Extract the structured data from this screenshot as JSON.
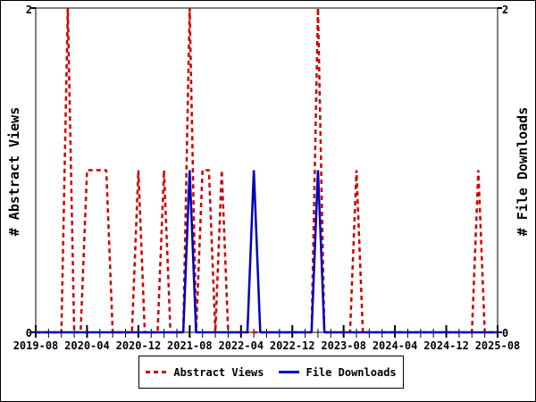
{
  "chart": {
    "left_axis_title": "# Abstract Views",
    "right_axis_title": "# File Downloads",
    "background_color": "#ffffff",
    "axis_color": "#000000",
    "text_color": "#000000"
  },
  "chart_data": {
    "type": "line",
    "title": "",
    "x_start_month": "2019-08",
    "x_end_month": "2025-08",
    "months_span": 72,
    "x_tick_labels": [
      "2019-08",
      "2020-04",
      "2020-12",
      "2021-08",
      "2022-04",
      "2022-12",
      "2023-08",
      "2024-04",
      "2024-12",
      "2025-08"
    ],
    "x_major_tick_every_months": 8,
    "x_minor_tick_every_months": 2,
    "ylim": [
      0,
      2
    ],
    "y_tick_labels": [
      "0",
      "2"
    ],
    "left_ylabel": "# Abstract Views",
    "right_ylabel": "# File Downloads",
    "grid": false,
    "legend_position": "bottom-center",
    "series": [
      {
        "name": "Abstract Views",
        "color": "#cc0000",
        "line_style": "dashed",
        "axis": "left",
        "values": [
          0,
          0,
          0,
          0,
          0,
          2,
          0,
          0,
          1,
          1,
          1,
          1,
          0,
          0,
          0,
          0,
          1,
          0,
          0,
          0,
          1,
          0,
          0,
          0,
          2,
          0,
          1,
          1,
          0,
          1,
          0,
          0,
          0,
          0,
          0,
          0,
          0,
          0,
          0,
          0,
          0,
          0,
          0,
          0,
          2,
          0,
          0,
          0,
          0,
          0,
          1,
          0,
          0,
          0,
          0,
          0,
          0,
          0,
          0,
          0,
          0,
          0,
          0,
          0,
          0,
          0,
          0,
          0,
          0,
          1,
          0,
          0,
          0
        ]
      },
      {
        "name": "File Downloads",
        "color": "#0000bb",
        "line_style": "solid",
        "axis": "right",
        "values": [
          0,
          0,
          0,
          0,
          0,
          0,
          0,
          0,
          0,
          0,
          0,
          0,
          0,
          0,
          0,
          0,
          0,
          0,
          0,
          0,
          0,
          0,
          0,
          0,
          1,
          0,
          0,
          0,
          0,
          0,
          0,
          0,
          0,
          0,
          1,
          0,
          0,
          0,
          0,
          0,
          0,
          0,
          0,
          0,
          1,
          0,
          0,
          0,
          0,
          0,
          0,
          0,
          0,
          0,
          0,
          0,
          0,
          0,
          0,
          0,
          0,
          0,
          0,
          0,
          0,
          0,
          0,
          0,
          0,
          0,
          0,
          0,
          0
        ]
      }
    ],
    "nonzero_points": {
      "abstract_views": {
        "2020-01": 2,
        "2020-04": 1,
        "2020-05": 1,
        "2020-06": 1,
        "2020-07": 1,
        "2020-12": 1,
        "2021-04": 1,
        "2021-08": 2,
        "2021-10": 1,
        "2021-11": 1,
        "2022-01": 1,
        "2023-04": 2,
        "2023-10": 1,
        "2025-05": 1
      },
      "file_downloads": {
        "2021-08": 1,
        "2022-06": 1,
        "2023-04": 1
      }
    }
  }
}
